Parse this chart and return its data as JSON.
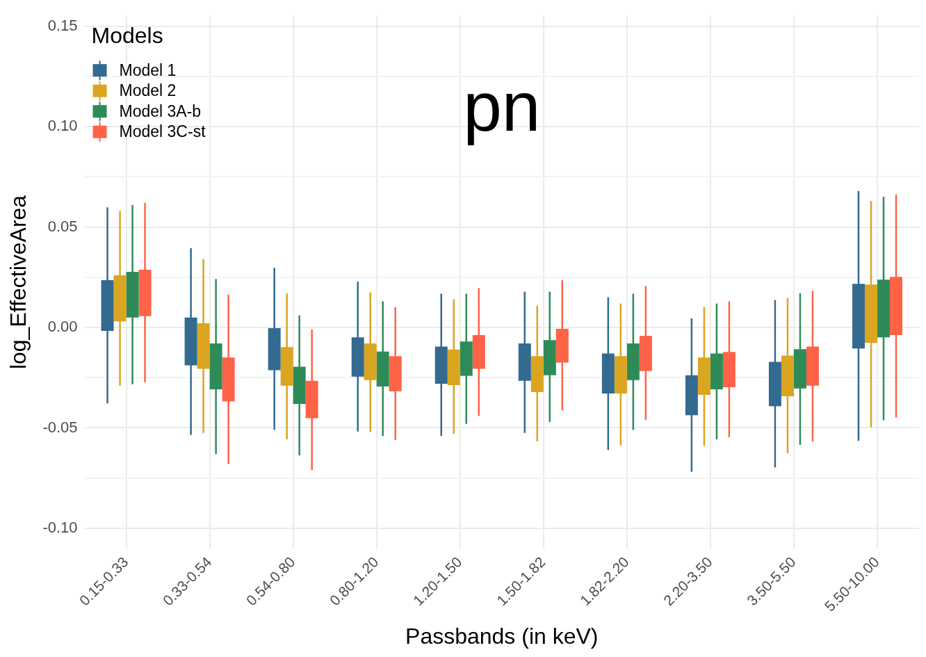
{
  "chart_data": {
    "type": "bar",
    "title": "pn",
    "xlabel": "Passbands (in keV)",
    "ylabel": "log_EffectiveArea",
    "legend_title": "Models",
    "legend": "top left",
    "grid": true,
    "categories": [
      "0.15-0.33",
      "0.33-0.54",
      "0.54-0.80",
      "0.80-1.20",
      "1.20-1.50",
      "1.50-1.82",
      "1.82-2.20",
      "2.20-3.50",
      "3.50-5.50",
      "5.50-10.00"
    ],
    "ylim": [
      -0.11,
      0.155
    ],
    "yticks": [
      {
        "value": -0.1,
        "label": "-0.10"
      },
      {
        "value": -0.075,
        "label": null
      },
      {
        "value": -0.05,
        "label": "-0.05"
      },
      {
        "value": -0.025,
        "label": null
      },
      {
        "value": 0,
        "label": "0.00"
      },
      {
        "value": 0.025,
        "label": null
      },
      {
        "value": 0.05,
        "label": "0.05"
      },
      {
        "value": 0.075,
        "label": null
      },
      {
        "value": 0.1,
        "label": "0.10"
      },
      {
        "value": 0.125,
        "label": null
      },
      {
        "value": 0.15,
        "label": "0.15"
      }
    ],
    "series": [
      {
        "name": "Model 1",
        "color": "#336a90",
        "base": [
          -0.0017,
          -0.0189,
          -0.0213,
          -0.0245,
          -0.028,
          -0.0266,
          -0.0329,
          -0.0437,
          -0.0392,
          -0.0105
        ],
        "values": [
          0.0252,
          0.0238,
          0.0213,
          0.0196,
          0.0185,
          0.0186,
          0.0199,
          0.0199,
          0.0221,
          0.0322
        ],
        "errors": [
          [
            -0.0378,
            0.0598
          ],
          [
            -0.0535,
            0.0395
          ],
          [
            -0.051,
            0.0297
          ],
          [
            -0.0518,
            0.0228
          ],
          [
            -0.054,
            0.0168
          ],
          [
            -0.0525,
            0.0178
          ],
          [
            -0.061,
            0.015
          ],
          [
            -0.0718,
            0.0045
          ],
          [
            -0.0697,
            0.0136
          ],
          [
            -0.0564,
            0.0679
          ]
        ]
      },
      {
        "name": "Model 2",
        "color": "#daa520",
        "base": [
          0.003,
          -0.0206,
          -0.029,
          -0.0262,
          -0.0287,
          -0.0322,
          -0.0329,
          -0.0336,
          -0.0343,
          -0.0077
        ],
        "values": [
          0.023,
          0.0227,
          0.0192,
          0.0182,
          0.0177,
          0.0179,
          0.0186,
          0.0186,
          0.0203,
          0.0291
        ],
        "errors": [
          [
            -0.029,
            0.058
          ],
          [
            -0.0525,
            0.034
          ],
          [
            -0.0557,
            0.017
          ],
          [
            -0.052,
            0.0175
          ],
          [
            -0.053,
            0.014
          ],
          [
            -0.0567,
            0.0108
          ],
          [
            -0.0588,
            0.0119
          ],
          [
            -0.059,
            0.0101
          ],
          [
            -0.0627,
            0.0147
          ],
          [
            -0.0497,
            0.063
          ]
        ]
      },
      {
        "name": "Model 3A-b",
        "color": "#2e8b57",
        "base": [
          0.0049,
          -0.0308,
          -0.0381,
          -0.0294,
          -0.0241,
          -0.0238,
          -0.0262,
          -0.0308,
          -0.0304,
          -0.0049
        ],
        "values": [
          0.0228,
          0.0228,
          0.0185,
          0.0174,
          0.0171,
          0.0175,
          0.0182,
          0.0178,
          0.0196,
          0.0287
        ],
        "errors": [
          [
            -0.0283,
            0.061
          ],
          [
            -0.063,
            0.0241
          ],
          [
            -0.0637,
            0.006
          ],
          [
            -0.054,
            0.013
          ],
          [
            -0.048,
            0.0168
          ],
          [
            -0.047,
            0.0178
          ],
          [
            -0.051,
            0.0168
          ],
          [
            -0.0557,
            0.0119
          ],
          [
            -0.0585,
            0.0171
          ],
          [
            -0.0462,
            0.0651
          ]
        ]
      },
      {
        "name": "Model 3C-st",
        "color": "#ff6347",
        "base": [
          0.0056,
          -0.0368,
          -0.0452,
          -0.0318,
          -0.0206,
          -0.0175,
          -0.0217,
          -0.0298,
          -0.029,
          -0.0038
        ],
        "values": [
          0.0231,
          0.0218,
          0.0186,
          0.0175,
          0.0168,
          0.0168,
          0.0175,
          0.0176,
          0.0195,
          0.029
        ],
        "errors": [
          [
            -0.0273,
            0.062
          ],
          [
            -0.068,
            0.0164
          ],
          [
            -0.071,
            -0.001
          ],
          [
            -0.056,
            0.01
          ],
          [
            -0.044,
            0.0196
          ],
          [
            -0.0413,
            0.0235
          ],
          [
            -0.046,
            0.0206
          ],
          [
            -0.0546,
            0.013
          ],
          [
            -0.0567,
            0.0182
          ],
          [
            -0.0448,
            0.0662
          ]
        ]
      }
    ]
  }
}
